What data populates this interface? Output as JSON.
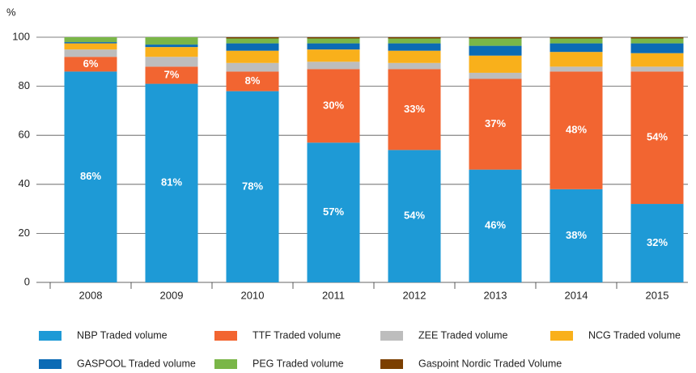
{
  "chart_data": {
    "type": "stacked_bar",
    "y_label": "%",
    "categories": [
      "2008",
      "2009",
      "2010",
      "2011",
      "2012",
      "2013",
      "2014",
      "2015"
    ],
    "series": [
      {
        "name": "NBP Traded volume",
        "color": "#1e9ad6",
        "values": [
          86,
          81,
          78,
          57,
          54,
          46,
          38,
          32
        ],
        "value_labels": [
          "86%",
          "81%",
          "78%",
          "57%",
          "54%",
          "46%",
          "38%",
          "32%"
        ]
      },
      {
        "name": "TTF Traded volume",
        "color": "#f26531",
        "values": [
          6,
          7,
          8,
          30,
          33,
          37,
          48,
          54
        ],
        "value_labels": [
          "6%",
          "7%",
          "8%",
          "30%",
          "33%",
          "37%",
          "48%",
          "54%"
        ]
      },
      {
        "name": "ZEE Traded volume",
        "color": "#bdbdbd",
        "values": [
          3,
          4,
          3.5,
          3,
          2.5,
          2.5,
          2,
          2
        ]
      },
      {
        "name": "NCG Traded volume",
        "color": "#f9b01b",
        "values": [
          2.5,
          4,
          5,
          5,
          5,
          7,
          6,
          5.5
        ]
      },
      {
        "name": "GASPOOL Traded volume",
        "color": "#0b6bb5",
        "values": [
          0.5,
          1,
          3,
          2.5,
          3,
          4,
          3.5,
          4
        ]
      },
      {
        "name": "PEG Traded volume",
        "color": "#7ab648",
        "values": [
          2,
          3,
          2,
          2,
          2,
          3,
          2,
          2
        ]
      },
      {
        "name": "Gaspoint Nordic Traded Volume",
        "color": "#7b3f00",
        "values": [
          0,
          0,
          0.5,
          0.5,
          0.5,
          0.5,
          0.5,
          0.5
        ]
      }
    ],
    "ylim": [
      0,
      100
    ],
    "yticks": [
      0,
      20,
      40,
      60,
      80,
      100
    ],
    "grid": true
  }
}
